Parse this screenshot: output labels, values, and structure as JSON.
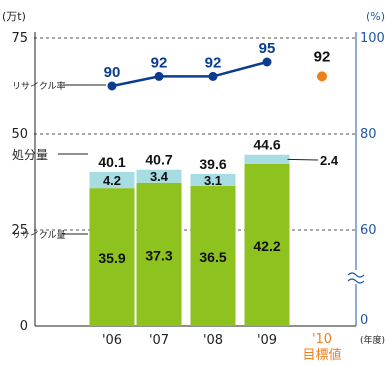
{
  "chart_data": {
    "type": "bar",
    "categories": [
      "'06",
      "'07",
      "'08",
      "'09",
      "'10"
    ],
    "target_label": "目標値",
    "x_unit": "(年度)",
    "left_axis": {
      "unit": "(万t)",
      "ticks": [
        0,
        25,
        50,
        75
      ],
      "range": [
        0,
        75
      ]
    },
    "right_axis": {
      "unit": "(%)",
      "ticks": [
        0,
        60,
        80,
        100
      ],
      "displayed_range": [
        60,
        100
      ],
      "break": true
    },
    "series": [
      {
        "name": "リサイクル量",
        "type": "stacked-bar",
        "values": [
          35.9,
          37.3,
          36.5,
          42.2,
          null
        ]
      },
      {
        "name": "処分量",
        "type": "stacked-bar",
        "values": [
          4.2,
          3.4,
          3.1,
          2.4,
          null
        ]
      },
      {
        "name": "リサイクル率",
        "type": "line",
        "axis": "right",
        "values": [
          90,
          92,
          92,
          95,
          null
        ],
        "target": 92
      }
    ],
    "totals": [
      "40.1",
      "40.7",
      "39.6",
      "44.6"
    ],
    "recycle_labels": [
      "35.9",
      "37.3",
      "36.5",
      "42.2"
    ],
    "disposal_labels": [
      "4.2",
      "3.4",
      "3.1",
      "2.4"
    ],
    "rate_labels": [
      "90",
      "92",
      "92",
      "95"
    ],
    "target_rate_label": "92",
    "colors": {
      "recycle": "#8dc21f",
      "disposal": "#a7dce3",
      "rate_line": "#0a3d8f",
      "target_marker": "#f07f1e",
      "axis_text": "#1f57a6",
      "grid": "#555555"
    }
  }
}
